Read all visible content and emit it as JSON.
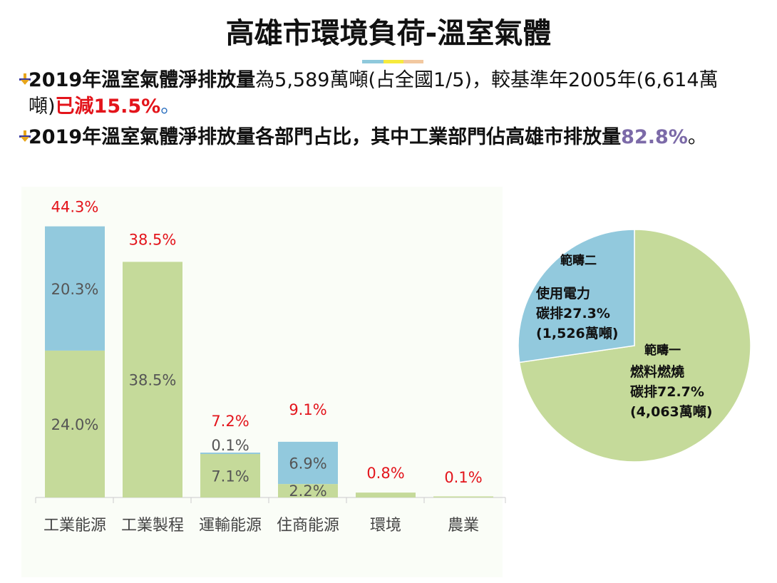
{
  "title": "高雄市環境負荷-溫室氣體",
  "bullets": [
    {
      "bold_lead": "2019年溫室氣體淨排放量",
      "text_a": "為5,589萬噸(占全國1/5)，較基準年2005年(6,614萬噸)",
      "highlight": "已減15.5%",
      "tail": "。"
    },
    {
      "bold_lead": "2019年溫室氣體淨排放量各部門占比，其中工業部門佔高雄市排放量",
      "highlight": "82.8%",
      "tail": "。"
    }
  ],
  "colors": {
    "green": "#c5da9a",
    "blue": "#92c9dd",
    "red": "#e3141b",
    "purple": "#7c6aa8",
    "axis": "#cccccc"
  },
  "chart_data": [
    {
      "type": "bar",
      "stacked": true,
      "categories": [
        "工業能源",
        "工業製程",
        "運輸能源",
        "住商能源",
        "環境",
        "農業"
      ],
      "series": [
        {
          "name": "範疇一",
          "values": [
            24.0,
            38.5,
            7.1,
            2.2,
            0.8,
            0.1
          ]
        },
        {
          "name": "範疇二",
          "values": [
            20.3,
            0.0,
            0.1,
            6.9,
            0.0,
            0.0
          ]
        }
      ],
      "segment_labels": {
        "bottom": [
          "24.0%",
          "38.5%",
          "7.1%",
          "2.2%",
          "",
          ""
        ],
        "top": [
          "20.3%",
          "",
          "0.1%",
          "6.9%",
          "",
          ""
        ]
      },
      "totals": [
        "44.3%",
        "38.5%",
        "7.2%",
        "9.1%",
        "0.8%",
        "0.1%"
      ],
      "ylim": [
        0,
        46
      ]
    },
    {
      "type": "pie",
      "slices": [
        {
          "label": "範疇一",
          "desc": [
            "燃料燃燒",
            "碳排72.7%",
            "(4,063萬噸)"
          ],
          "value": 72.7
        },
        {
          "label": "範疇二",
          "desc": [
            "使用電力",
            "碳排27.3%",
            "(1,526萬噸)"
          ],
          "value": 27.3
        }
      ]
    }
  ]
}
